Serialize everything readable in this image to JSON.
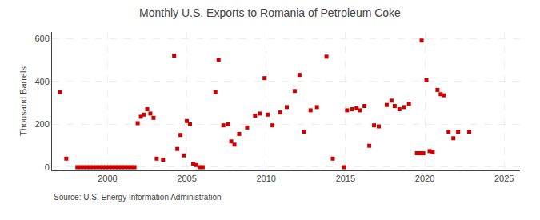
{
  "chart_data": {
    "type": "scatter",
    "title": "Monthly U.S. Exports to Romania of Petroleum Coke",
    "ylabel": "Thousand Barrels",
    "annotations": [
      "Source: U.S. Energy Information Administration"
    ],
    "color": "#cc0000",
    "marker": "square",
    "grid": true,
    "xlim": [
      1996.5,
      2026
    ],
    "ylim": [
      -15,
      630
    ],
    "xticks": [
      2000,
      2005,
      2010,
      2015,
      2020,
      2025
    ],
    "yticks": [
      0,
      200,
      400,
      600
    ],
    "x": [
      1997.0,
      1997.4,
      1998.1,
      1998.3,
      1998.5,
      1998.7,
      1998.9,
      1999.1,
      1999.3,
      1999.5,
      1999.7,
      1999.9,
      2000.1,
      2000.3,
      2000.5,
      2000.7,
      2000.9,
      2001.1,
      2001.3,
      2001.5,
      2001.7,
      2001.9,
      2002.1,
      2002.3,
      2002.5,
      2002.7,
      2002.9,
      2003.1,
      2003.5,
      2004.2,
      2004.4,
      2004.6,
      2004.8,
      2005.0,
      2005.2,
      2005.4,
      2005.6,
      2005.8,
      2006.0,
      2006.8,
      2007.0,
      2007.3,
      2007.6,
      2007.8,
      2008.0,
      2008.3,
      2008.8,
      2009.3,
      2009.6,
      2009.9,
      2010.1,
      2010.4,
      2010.9,
      2011.3,
      2011.8,
      2012.1,
      2012.4,
      2012.8,
      2013.2,
      2013.8,
      2014.2,
      2014.9,
      2015.1,
      2015.4,
      2015.7,
      2015.9,
      2016.2,
      2016.5,
      2016.8,
      2017.1,
      2017.6,
      2017.9,
      2018.1,
      2018.4,
      2018.7,
      2019.0,
      2019.8,
      2020.1,
      2019.5,
      2019.6,
      2019.7,
      2019.9,
      2020.3,
      2020.5,
      2020.8,
      2021.0,
      2021.2,
      2021.5,
      2021.8,
      2022.1,
      2022.8
    ],
    "values": [
      350,
      40,
      0,
      0,
      0,
      0,
      0,
      0,
      0,
      0,
      0,
      0,
      0,
      0,
      0,
      0,
      0,
      0,
      0,
      0,
      0,
      205,
      235,
      245,
      270,
      250,
      230,
      40,
      35,
      520,
      85,
      150,
      55,
      215,
      200,
      15,
      10,
      0,
      0,
      350,
      500,
      195,
      200,
      120,
      105,
      155,
      185,
      240,
      250,
      415,
      245,
      195,
      255,
      280,
      355,
      430,
      165,
      265,
      280,
      515,
      40,
      0,
      265,
      270,
      275,
      265,
      285,
      100,
      195,
      190,
      290,
      310,
      285,
      270,
      280,
      295,
      590,
      405,
      65,
      65,
      65,
      65,
      75,
      70,
      360,
      340,
      335,
      165,
      135,
      165,
      165
    ]
  }
}
